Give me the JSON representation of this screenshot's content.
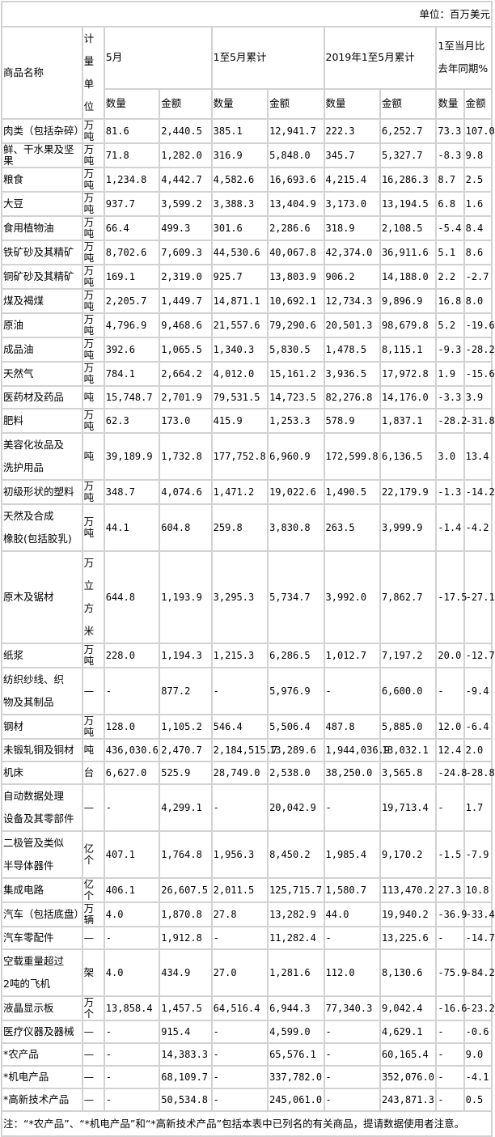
{
  "unit_note": "单位：百万美元",
  "headers": {
    "name": "商品名称",
    "unit": "计量\n单位",
    "may": "5月",
    "jan_may": "1至5月累计",
    "jan_may_2019": "2019年1至5月累计",
    "yoy": "1至当月比\n去年同期%",
    "qty": "数量",
    "amt": "金额"
  },
  "rows": [
    [
      "肉类（包括杂碎）",
      "万吨",
      "81.6",
      "2,440.5",
      "385.1",
      "12,941.7",
      "222.3",
      "6,252.7",
      "73.3",
      "107.0"
    ],
    [
      "鲜、干水果及坚果",
      "万吨",
      "71.8",
      "1,282.0",
      "316.9",
      "5,848.0",
      "345.7",
      "5,327.7",
      "-8.3",
      "9.8"
    ],
    [
      "粮食",
      "万吨",
      "1,234.8",
      "4,442.7",
      "4,582.6",
      "16,693.6",
      "4,215.4",
      "16,286.3",
      "8.7",
      "2.5"
    ],
    [
      "大豆",
      "万吨",
      "937.7",
      "3,599.2",
      "3,388.3",
      "13,404.9",
      "3,173.0",
      "13,194.5",
      "6.8",
      "1.6"
    ],
    [
      "食用植物油",
      "万吨",
      "66.4",
      "499.3",
      "301.6",
      "2,286.6",
      "318.9",
      "2,108.5",
      "-5.4",
      "8.4"
    ],
    [
      "铁矿砂及其精矿",
      "万吨",
      "8,702.6",
      "7,609.3",
      "44,530.6",
      "40,067.8",
      "42,374.0",
      "36,911.6",
      "5.1",
      "8.6"
    ],
    [
      "铜矿砂及其精矿",
      "万吨",
      "169.1",
      "2,319.0",
      "925.7",
      "13,803.9",
      "906.2",
      "14,188.0",
      "2.2",
      "-2.7"
    ],
    [
      "煤及褐煤",
      "万吨",
      "2,205.7",
      "1,449.7",
      "14,871.1",
      "10,692.1",
      "12,734.3",
      "9,896.9",
      "16.8",
      "8.0"
    ],
    [
      "原油",
      "万吨",
      "4,796.9",
      "9,468.6",
      "21,557.6",
      "79,290.6",
      "20,501.3",
      "98,679.8",
      "5.2",
      "-19.6"
    ],
    [
      "成品油",
      "万吨",
      "392.6",
      "1,065.5",
      "1,340.3",
      "5,830.5",
      "1,478.5",
      "8,115.1",
      "-9.3",
      "-28.2"
    ],
    [
      "天然气",
      "万吨",
      "784.1",
      "2,664.2",
      "4,012.0",
      "15,161.2",
      "3,936.5",
      "17,972.8",
      "1.9",
      "-15.6"
    ],
    [
      "医药材及药品",
      "吨",
      "15,748.7",
      "2,701.9",
      "79,531.5",
      "14,723.5",
      "82,276.8",
      "14,176.0",
      "-3.3",
      "3.9"
    ],
    [
      "肥料",
      "万吨",
      "62.3",
      "173.0",
      "415.9",
      "1,253.3",
      "578.9",
      "1,837.1",
      "-28.2",
      "-31.8"
    ],
    [
      "美容化妆品及\n洗护用品",
      "吨",
      "39,189.9",
      "1,732.8",
      "177,752.8",
      "6,960.9",
      "172,599.8",
      "6,136.5",
      "3.0",
      "13.4"
    ],
    [
      "初级形状的塑料",
      "万吨",
      "348.7",
      "4,074.6",
      "1,471.2",
      "19,022.6",
      "1,490.5",
      "22,179.9",
      "-1.3",
      "-14.2"
    ],
    [
      "天然及合成\n橡胶(包括胶乳)",
      "万吨",
      "44.1",
      "604.8",
      "259.8",
      "3,830.8",
      "263.5",
      "3,999.9",
      "-1.4",
      "-4.2"
    ],
    [
      "原木及锯材",
      "万立\n方米",
      "644.8",
      "1,193.9",
      "3,295.3",
      "5,734.7",
      "3,992.0",
      "7,862.7",
      "-17.5",
      "-27.1"
    ],
    [
      "纸浆",
      "万吨",
      "228.0",
      "1,194.3",
      "1,215.3",
      "6,286.5",
      "1,012.7",
      "7,197.2",
      "20.0",
      "-12.7"
    ],
    [
      "纺织纱线、织\n物及其制品",
      "—",
      "-",
      "877.2",
      "-",
      "5,976.9",
      "-",
      "6,600.0",
      "-",
      "-9.4"
    ],
    [
      "钢材",
      "万吨",
      "128.0",
      "1,105.2",
      "546.4",
      "5,506.4",
      "487.8",
      "5,885.0",
      "12.0",
      "-6.4"
    ],
    [
      "未锻轧铜及铜材",
      "吨",
      "436,030.6",
      "2,470.7",
      "2,184,515.7",
      "13,289.6",
      "1,944,036.9",
      "13,032.1",
      "12.4",
      "2.0"
    ],
    [
      "机床",
      "台",
      "6,627.0",
      "525.9",
      "28,749.0",
      "2,538.0",
      "38,250.0",
      "3,565.8",
      "-24.8",
      "-28.8"
    ],
    [
      "自动数据处理\n设备及其零部件",
      "—",
      "-",
      "4,299.1",
      "-",
      "20,042.9",
      "-",
      "19,713.4",
      "-",
      "1.7"
    ],
    [
      "二极管及类似\n半导体器件",
      "亿个",
      "407.1",
      "1,764.8",
      "1,956.3",
      "8,450.2",
      "1,985.4",
      "9,170.2",
      "-1.5",
      "-7.9"
    ],
    [
      "集成电路",
      "亿个",
      "406.1",
      "26,607.5",
      "2,011.5",
      "125,715.7",
      "1,580.7",
      "113,470.2",
      "27.3",
      "10.8"
    ],
    [
      "汽车（包括底盘）",
      "万辆",
      "4.0",
      "1,870.8",
      "27.8",
      "13,282.9",
      "44.0",
      "19,940.2",
      "-36.9",
      "-33.4"
    ],
    [
      "汽车零配件",
      "—",
      "-",
      "1,912.8",
      "-",
      "11,282.4",
      "-",
      "13,225.6",
      "-",
      "-14.7"
    ],
    [
      "空载重量超过\n2吨的飞机",
      "架",
      "4.0",
      "434.9",
      "27.0",
      "1,281.6",
      "112.0",
      "8,130.6",
      "-75.9",
      "-84.2"
    ],
    [
      "液晶显示板",
      "万个",
      "13,858.4",
      "1,457.5",
      "64,516.4",
      "6,944.3",
      "77,340.3",
      "9,042.4",
      "-16.6",
      "-23.2"
    ],
    [
      "医疗仪器及器械",
      "—",
      "-",
      "915.4",
      "-",
      "4,599.0",
      "-",
      "4,629.1",
      "-",
      "-0.6"
    ],
    [
      "*农产品",
      "—",
      "-",
      "14,383.3",
      "-",
      "65,576.1",
      "-",
      "60,165.4",
      "-",
      "9.0"
    ],
    [
      "*机电产品",
      "—",
      "-",
      "68,109.7",
      "-",
      "337,782.0",
      "-",
      "352,076.0",
      "-",
      "-4.1"
    ],
    [
      "*高新技术产品",
      "—",
      "-",
      "50,534.8",
      "-",
      "245,061.0",
      "-",
      "243,871.3",
      "-",
      "0.5"
    ]
  ],
  "footnote": "注：“*农产品”、“*机电产品”和“*高新技术产品”包括本表中已列名的有关商品，提请数据使用者注意。"
}
